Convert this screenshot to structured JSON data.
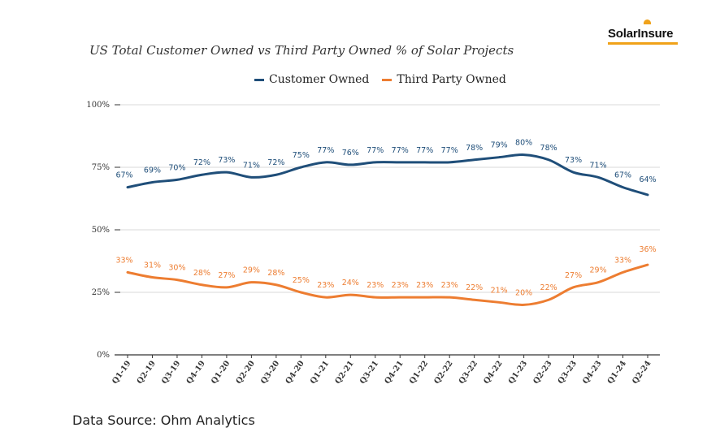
{
  "logo": {
    "text": "SolarInsure"
  },
  "source_text": "Data Source: Ohm Analytics",
  "colors": {
    "customer": "#1f4e79",
    "third_party": "#ed7d31",
    "grid": "#d9d9d9",
    "axis": "#333333"
  },
  "chart_data": {
    "type": "line",
    "title": "US Total Customer Owned vs Third Party Owned % of Solar Projects",
    "xlabel": "",
    "ylabel": "",
    "categories": [
      "Q1-19",
      "Q2-19",
      "Q3-19",
      "Q4-19",
      "Q1-20",
      "Q2-20",
      "Q3-20",
      "Q4-20",
      "Q1-21",
      "Q2-21",
      "Q3-21",
      "Q4-21",
      "Q1-22",
      "Q2-22",
      "Q3-22",
      "Q4-22",
      "Q1-23",
      "Q2-23",
      "Q3-23",
      "Q4-23",
      "Q1-24",
      "Q2-24"
    ],
    "ylim": [
      0,
      100
    ],
    "yticks": [
      0,
      25,
      50,
      75,
      100
    ],
    "ytick_labels": [
      "0%",
      "25%",
      "50%",
      "75%",
      "100%"
    ],
    "legend_position": "top-center",
    "grid": true,
    "series": [
      {
        "name": "Customer Owned",
        "values": [
          67,
          69,
          70,
          72,
          73,
          71,
          72,
          75,
          77,
          76,
          77,
          77,
          77,
          77,
          78,
          79,
          80,
          78,
          73,
          71,
          67,
          64
        ]
      },
      {
        "name": "Third Party Owned",
        "values": [
          33,
          31,
          30,
          28,
          27,
          29,
          28,
          25,
          23,
          24,
          23,
          23,
          23,
          23,
          22,
          21,
          20,
          22,
          27,
          29,
          33,
          36
        ]
      }
    ]
  }
}
